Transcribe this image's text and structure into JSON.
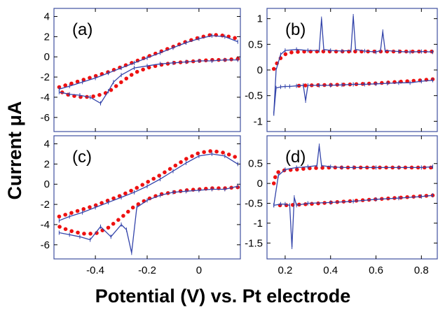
{
  "xlabel": "Potential (V) vs. Pt electrode",
  "ylabel": "Current μA",
  "colors": {
    "measured": "#3344aa",
    "fit": "#ee1111",
    "frame": "#4050a0"
  },
  "chart_data": [
    {
      "label": "(a)",
      "type": "line",
      "xlim": [
        -0.56,
        0.16
      ],
      "ylim": [
        -7.4,
        4.8
      ],
      "xticks": [
        -0.4,
        -0.2,
        0
      ],
      "xticklabels": [
        "",
        "",
        ""
      ],
      "yticks": [
        4,
        2,
        0,
        -2,
        -4,
        -6
      ],
      "yticklabels": [
        "4",
        "2",
        "0",
        "-2",
        "-4",
        "-6"
      ],
      "series": [
        {
          "role": "measured",
          "x": [
            -0.54,
            -0.5,
            -0.45,
            -0.4,
            -0.35,
            -0.3,
            -0.25,
            -0.2,
            -0.15,
            -0.1,
            -0.05,
            0,
            0.05,
            0.1,
            0.15
          ],
          "y": [
            -3.2,
            -2.9,
            -2.5,
            -2.1,
            -1.6,
            -1.1,
            -0.6,
            -0.1,
            0.4,
            0.9,
            1.4,
            1.8,
            2.1,
            2.0,
            1.5
          ]
        },
        {
          "role": "measured",
          "x": [
            0.15,
            0.1,
            0.05,
            0,
            -0.05,
            -0.1,
            -0.15,
            -0.2,
            -0.25,
            -0.3,
            -0.33,
            -0.35,
            -0.38,
            -0.42,
            -0.46,
            -0.5,
            -0.54
          ],
          "y": [
            -0.3,
            -0.3,
            -0.4,
            -0.4,
            -0.5,
            -0.6,
            -0.7,
            -0.9,
            -1.1,
            -1.8,
            -2.5,
            -3.4,
            -4.6,
            -4.0,
            -3.8,
            -3.7,
            -3.5
          ]
        },
        {
          "role": "fit",
          "x": [
            -0.54,
            -0.5,
            -0.45,
            -0.4,
            -0.35,
            -0.3,
            -0.25,
            -0.2,
            -0.15,
            -0.1,
            -0.05,
            0,
            0.05,
            0.1,
            0.15
          ],
          "y": [
            -3.0,
            -2.7,
            -2.3,
            -1.9,
            -1.5,
            -1.0,
            -0.5,
            0.0,
            0.5,
            1.0,
            1.5,
            1.9,
            2.2,
            2.1,
            1.8
          ]
        },
        {
          "role": "fit",
          "x": [
            0.15,
            0.1,
            0.05,
            0,
            -0.05,
            -0.1,
            -0.15,
            -0.2,
            -0.25,
            -0.3,
            -0.35,
            -0.4,
            -0.45,
            -0.5,
            -0.54
          ],
          "y": [
            -0.2,
            -0.3,
            -0.3,
            -0.4,
            -0.5,
            -0.6,
            -0.8,
            -1.1,
            -1.6,
            -2.5,
            -3.5,
            -3.9,
            -4.0,
            -3.8,
            -3.4
          ]
        }
      ]
    },
    {
      "label": "(b)",
      "type": "line",
      "xlim": [
        0.12,
        0.87
      ],
      "ylim": [
        -1.2,
        1.2
      ],
      "xticks": [
        0.2,
        0.4,
        0.6,
        0.8
      ],
      "xticklabels": [
        "",
        "",
        "",
        ""
      ],
      "yticks": [
        1,
        0.5,
        0,
        -0.5,
        -1
      ],
      "yticklabels": [
        "1",
        "0.5",
        "0",
        "-0.5",
        "-1"
      ],
      "series": [
        {
          "role": "measured",
          "x": [
            0.15,
            0.16,
            0.18,
            0.2,
            0.25,
            0.3,
            0.35,
            0.36,
            0.37,
            0.4,
            0.45,
            0.49,
            0.5,
            0.51,
            0.55,
            0.6,
            0.62,
            0.63,
            0.64,
            0.7,
            0.75,
            0.8,
            0.85
          ],
          "y": [
            -0.85,
            0.0,
            0.3,
            0.38,
            0.4,
            0.38,
            0.38,
            1.0,
            0.4,
            0.38,
            0.37,
            0.38,
            1.05,
            0.4,
            0.37,
            0.35,
            0.38,
            0.75,
            0.38,
            0.36,
            0.35,
            0.36,
            0.35
          ]
        },
        {
          "role": "measured",
          "x": [
            0.85,
            0.8,
            0.75,
            0.7,
            0.65,
            0.6,
            0.55,
            0.5,
            0.45,
            0.4,
            0.35,
            0.3,
            0.29,
            0.28,
            0.25,
            0.22,
            0.2,
            0.18,
            0.16,
            0.15
          ],
          "y": [
            -0.2,
            -0.22,
            -0.25,
            -0.25,
            -0.26,
            -0.27,
            -0.28,
            -0.28,
            -0.29,
            -0.3,
            -0.3,
            -0.3,
            -0.6,
            -0.3,
            -0.31,
            -0.32,
            -0.32,
            -0.33,
            -0.35,
            -0.85
          ]
        },
        {
          "role": "fit",
          "x": [
            0.15,
            0.17,
            0.19,
            0.21,
            0.24,
            0.3,
            0.4,
            0.5,
            0.6,
            0.7,
            0.8,
            0.85
          ],
          "y": [
            0.02,
            0.18,
            0.28,
            0.33,
            0.35,
            0.36,
            0.36,
            0.36,
            0.36,
            0.36,
            0.36,
            0.36
          ]
        },
        {
          "role": "fit",
          "x": [
            0.85,
            0.8,
            0.7,
            0.6,
            0.5,
            0.4,
            0.3,
            0.25
          ],
          "y": [
            -0.18,
            -0.2,
            -0.23,
            -0.26,
            -0.28,
            -0.29,
            -0.3,
            -0.31
          ]
        }
      ]
    },
    {
      "label": "(c)",
      "type": "line",
      "xlim": [
        -0.56,
        0.16
      ],
      "ylim": [
        -7.4,
        4.8
      ],
      "xticks": [
        -0.4,
        -0.2,
        0
      ],
      "xticklabels": [
        "-0.4",
        "-0.2",
        "0"
      ],
      "yticks": [
        4,
        2,
        0,
        -2,
        -4,
        -6
      ],
      "yticklabels": [
        "4",
        "2",
        "0",
        "-2",
        "-4",
        "-6"
      ],
      "series": [
        {
          "role": "measured",
          "x": [
            -0.54,
            -0.5,
            -0.45,
            -0.4,
            -0.35,
            -0.3,
            -0.25,
            -0.2,
            -0.15,
            -0.1,
            -0.05,
            0,
            0.05,
            0.1,
            0.15
          ],
          "y": [
            -3.6,
            -3.2,
            -2.8,
            -2.3,
            -1.8,
            -1.3,
            -0.8,
            -0.2,
            0.5,
            1.3,
            2.1,
            2.8,
            3.0,
            2.8,
            2.0
          ]
        },
        {
          "role": "measured",
          "x": [
            0.15,
            0.1,
            0.05,
            0,
            -0.05,
            -0.1,
            -0.15,
            -0.2,
            -0.24,
            -0.26,
            -0.28,
            -0.3,
            -0.34,
            -0.38,
            -0.42,
            -0.46,
            -0.5,
            -0.54
          ],
          "y": [
            -0.2,
            -0.5,
            -0.5,
            -0.6,
            -0.7,
            -0.8,
            -1.1,
            -1.6,
            -2.3,
            -6.8,
            -4.5,
            -4.0,
            -5.2,
            -4.2,
            -5.5,
            -5.2,
            -5.0,
            -4.8
          ]
        },
        {
          "role": "fit",
          "x": [
            -0.54,
            -0.5,
            -0.45,
            -0.4,
            -0.35,
            -0.3,
            -0.25,
            -0.2,
            -0.15,
            -0.1,
            -0.05,
            0,
            0.05,
            0.1,
            0.15
          ],
          "y": [
            -3.2,
            -2.9,
            -2.5,
            -2.1,
            -1.6,
            -1.1,
            -0.5,
            0.2,
            0.9,
            1.7,
            2.5,
            3.1,
            3.3,
            3.1,
            2.6
          ]
        },
        {
          "role": "fit",
          "x": [
            0.15,
            0.1,
            0.05,
            0,
            -0.05,
            -0.1,
            -0.15,
            -0.2,
            -0.25,
            -0.3,
            -0.35,
            -0.4,
            -0.45,
            -0.5,
            -0.54
          ],
          "y": [
            -0.3,
            -0.4,
            -0.4,
            -0.5,
            -0.6,
            -0.8,
            -1.0,
            -1.5,
            -2.2,
            -3.3,
            -4.3,
            -4.9,
            -4.9,
            -4.6,
            -4.2
          ]
        }
      ]
    },
    {
      "label": "(d)",
      "type": "line",
      "xlim": [
        0.12,
        0.87
      ],
      "ylim": [
        -1.9,
        1.2
      ],
      "xticks": [
        0.2,
        0.4,
        0.6,
        0.8
      ],
      "xticklabels": [
        "0.2",
        "0.4",
        "0.6",
        "0.8"
      ],
      "yticks": [
        0.5,
        0,
        -0.5,
        -1,
        -1.5
      ],
      "yticklabels": [
        "0.5",
        "0",
        "-0.5",
        "-1",
        "-1.5"
      ],
      "series": [
        {
          "role": "measured",
          "x": [
            0.15,
            0.17,
            0.2,
            0.25,
            0.3,
            0.34,
            0.35,
            0.36,
            0.4,
            0.45,
            0.5,
            0.6,
            0.7,
            0.8,
            0.85
          ],
          "y": [
            -0.55,
            0.2,
            0.35,
            0.4,
            0.42,
            0.45,
            0.95,
            0.45,
            0.42,
            0.4,
            0.4,
            0.4,
            0.4,
            0.4,
            0.42
          ]
        },
        {
          "role": "measured",
          "x": [
            0.85,
            0.8,
            0.7,
            0.6,
            0.5,
            0.4,
            0.3,
            0.25,
            0.24,
            0.23,
            0.22,
            0.2,
            0.18,
            0.15
          ],
          "y": [
            -0.3,
            -0.33,
            -0.37,
            -0.4,
            -0.45,
            -0.48,
            -0.5,
            -0.55,
            -0.35,
            -1.6,
            -0.55,
            -0.52,
            -0.52,
            -0.55
          ]
        },
        {
          "role": "fit",
          "x": [
            0.15,
            0.16,
            0.18,
            0.2,
            0.25,
            0.3,
            0.4,
            0.5,
            0.6,
            0.7,
            0.8,
            0.85
          ],
          "y": [
            0.0,
            0.25,
            0.32,
            0.33,
            0.35,
            0.38,
            0.4,
            0.4,
            0.4,
            0.4,
            0.4,
            0.4
          ]
        },
        {
          "role": "fit",
          "x": [
            0.85,
            0.8,
            0.7,
            0.6,
            0.5,
            0.4,
            0.3,
            0.2,
            0.15
          ],
          "y": [
            -0.3,
            -0.32,
            -0.36,
            -0.4,
            -0.44,
            -0.48,
            -0.52,
            -0.55,
            -0.55
          ]
        }
      ]
    }
  ]
}
